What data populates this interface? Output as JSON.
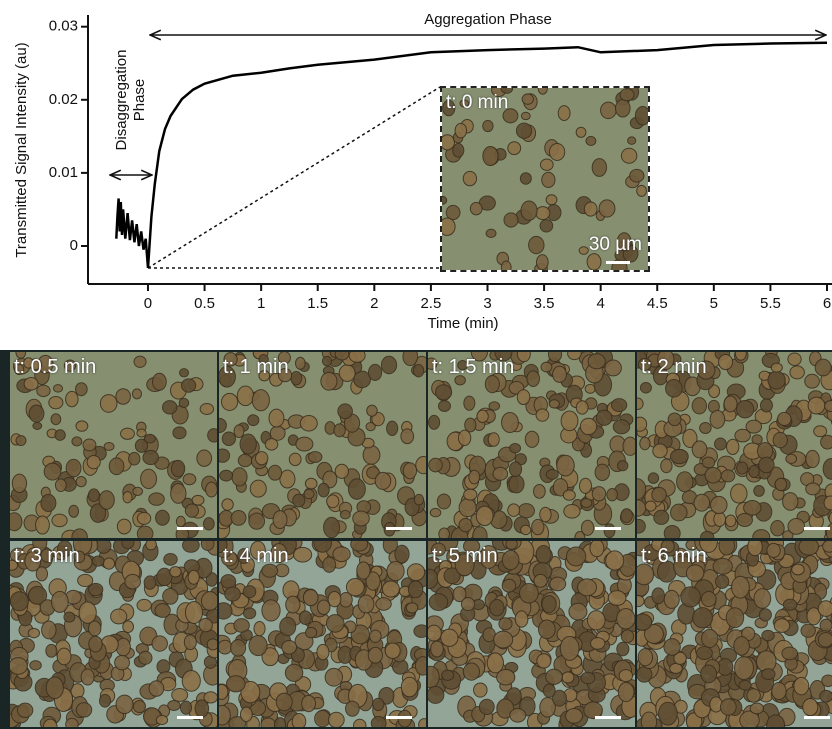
{
  "chart_data": {
    "type": "line",
    "xlabel": "Time (min)",
    "ylabel": "Transmitted Signal Intensity (au)",
    "annotations": [
      "Aggregation Phase",
      "Disaggregation",
      "Phase"
    ],
    "x": [
      -0.28,
      -0.27,
      -0.26,
      -0.25,
      -0.24,
      -0.23,
      -0.22,
      -0.2,
      -0.18,
      -0.16,
      -0.14,
      -0.12,
      -0.1,
      -0.08,
      -0.06,
      -0.04,
      -0.02,
      0,
      0.03,
      0.06,
      0.1,
      0.15,
      0.2,
      0.3,
      0.4,
      0.5,
      0.75,
      1,
      1.25,
      1.5,
      2,
      2.5,
      3,
      3.5,
      3.8,
      4,
      4.5,
      5,
      5.5,
      6
    ],
    "values": [
      0.001,
      0.004,
      0.0065,
      0.002,
      0.006,
      0.0015,
      0.005,
      0.001,
      0.0045,
      0.0008,
      0.0035,
      0.0005,
      0.003,
      0,
      0.002,
      -0.0005,
      0.001,
      -0.003,
      0.004,
      0.0085,
      0.013,
      0.016,
      0.0178,
      0.0201,
      0.0214,
      0.0222,
      0.0233,
      0.0237,
      0.0243,
      0.0248,
      0.0255,
      0.0265,
      0.0268,
      0.027,
      0.0272,
      0.0265,
      0.0268,
      0.0275,
      0.0277,
      0.0278
    ],
    "color": "#000000",
    "xlim": [
      -0.53,
      6
    ],
    "ylim": [
      -0.0052,
      0.0316
    ],
    "xticks": [
      0,
      0.5,
      1,
      1.5,
      2,
      2.5,
      3,
      3.5,
      4,
      4.5,
      5,
      5.5,
      6
    ],
    "yticks": [
      0,
      0.01,
      0.02,
      0.03
    ]
  },
  "inset": {
    "label": "t: 0 min",
    "scale_bar": "30 µm"
  },
  "panels": [
    {
      "label": "t: 0.5 min"
    },
    {
      "label": "t: 1 min"
    },
    {
      "label": "t: 1.5 min"
    },
    {
      "label": "t: 2 min"
    },
    {
      "label": "t: 3 min"
    },
    {
      "label": "t: 4 min"
    },
    {
      "label": "t: 5 min"
    },
    {
      "label": "t: 6 min"
    }
  ]
}
